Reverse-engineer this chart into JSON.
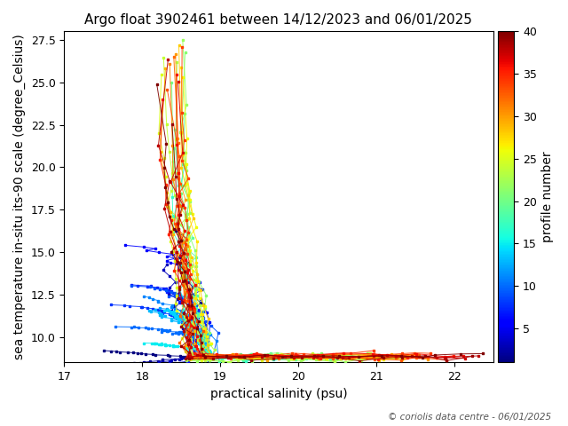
{
  "title": "Argo float 3902461 between 14/12/2023 and 06/01/2025",
  "xlabel": "practical salinity (psu)",
  "ylabel": "sea temperature in-situ its-90 scale (degree_Celsius)",
  "colorbar_label": "profile number",
  "colormap": "jet",
  "vmin": 1,
  "vmax": 40,
  "xlim": [
    17,
    22.5
  ],
  "ylim": [
    8.5,
    28.0
  ],
  "colorbar_ticks": [
    5,
    10,
    15,
    20,
    25,
    30,
    35,
    40
  ],
  "copyright_text": "© coriolis data centre - 06/01/2025",
  "title_fontsize": 11,
  "label_fontsize": 10,
  "tick_fontsize": 9,
  "marker": "s",
  "marker_size": 2.0,
  "line_width": 0.7,
  "num_profiles": 40,
  "random_seed": 42
}
